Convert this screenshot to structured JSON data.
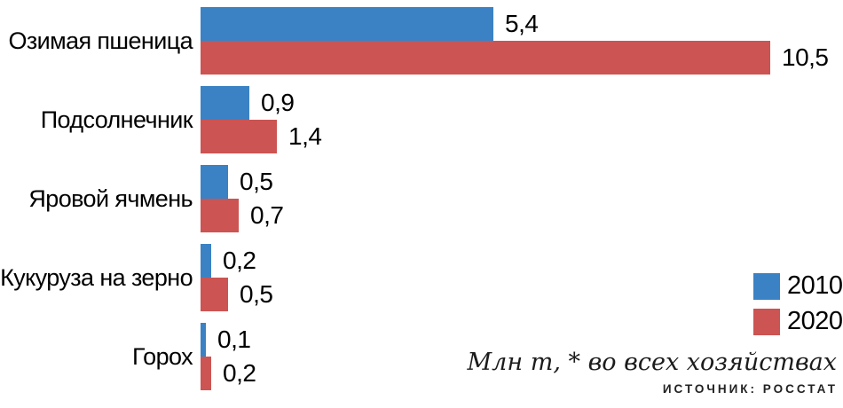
{
  "chart_data": {
    "type": "bar",
    "orientation": "horizontal",
    "categories": [
      "Озимая пшеница",
      "Подсолнечник",
      "Яровой ячмень",
      "Кукуруза на зерно",
      "Горох"
    ],
    "series": [
      {
        "name": "2010",
        "color": "#3a82c4",
        "values": [
          5.4,
          0.9,
          0.5,
          0.2,
          0.1
        ]
      },
      {
        "name": "2020",
        "color": "#cc5452",
        "values": [
          10.5,
          1.4,
          0.7,
          0.5,
          0.2
        ]
      }
    ],
    "value_labels": [
      [
        "5,4",
        "0,9",
        "0,5",
        "0,2",
        "0,1"
      ],
      [
        "10,5",
        "1,4",
        "0,7",
        "0,5",
        "0,2"
      ]
    ],
    "unit_note": "Млн т, * во всех хозяйствах",
    "source": "ИСТОЧНИК: РОССТАТ",
    "xlim": [
      0,
      10.5
    ],
    "grid": false,
    "legend_position": "right-middle"
  }
}
